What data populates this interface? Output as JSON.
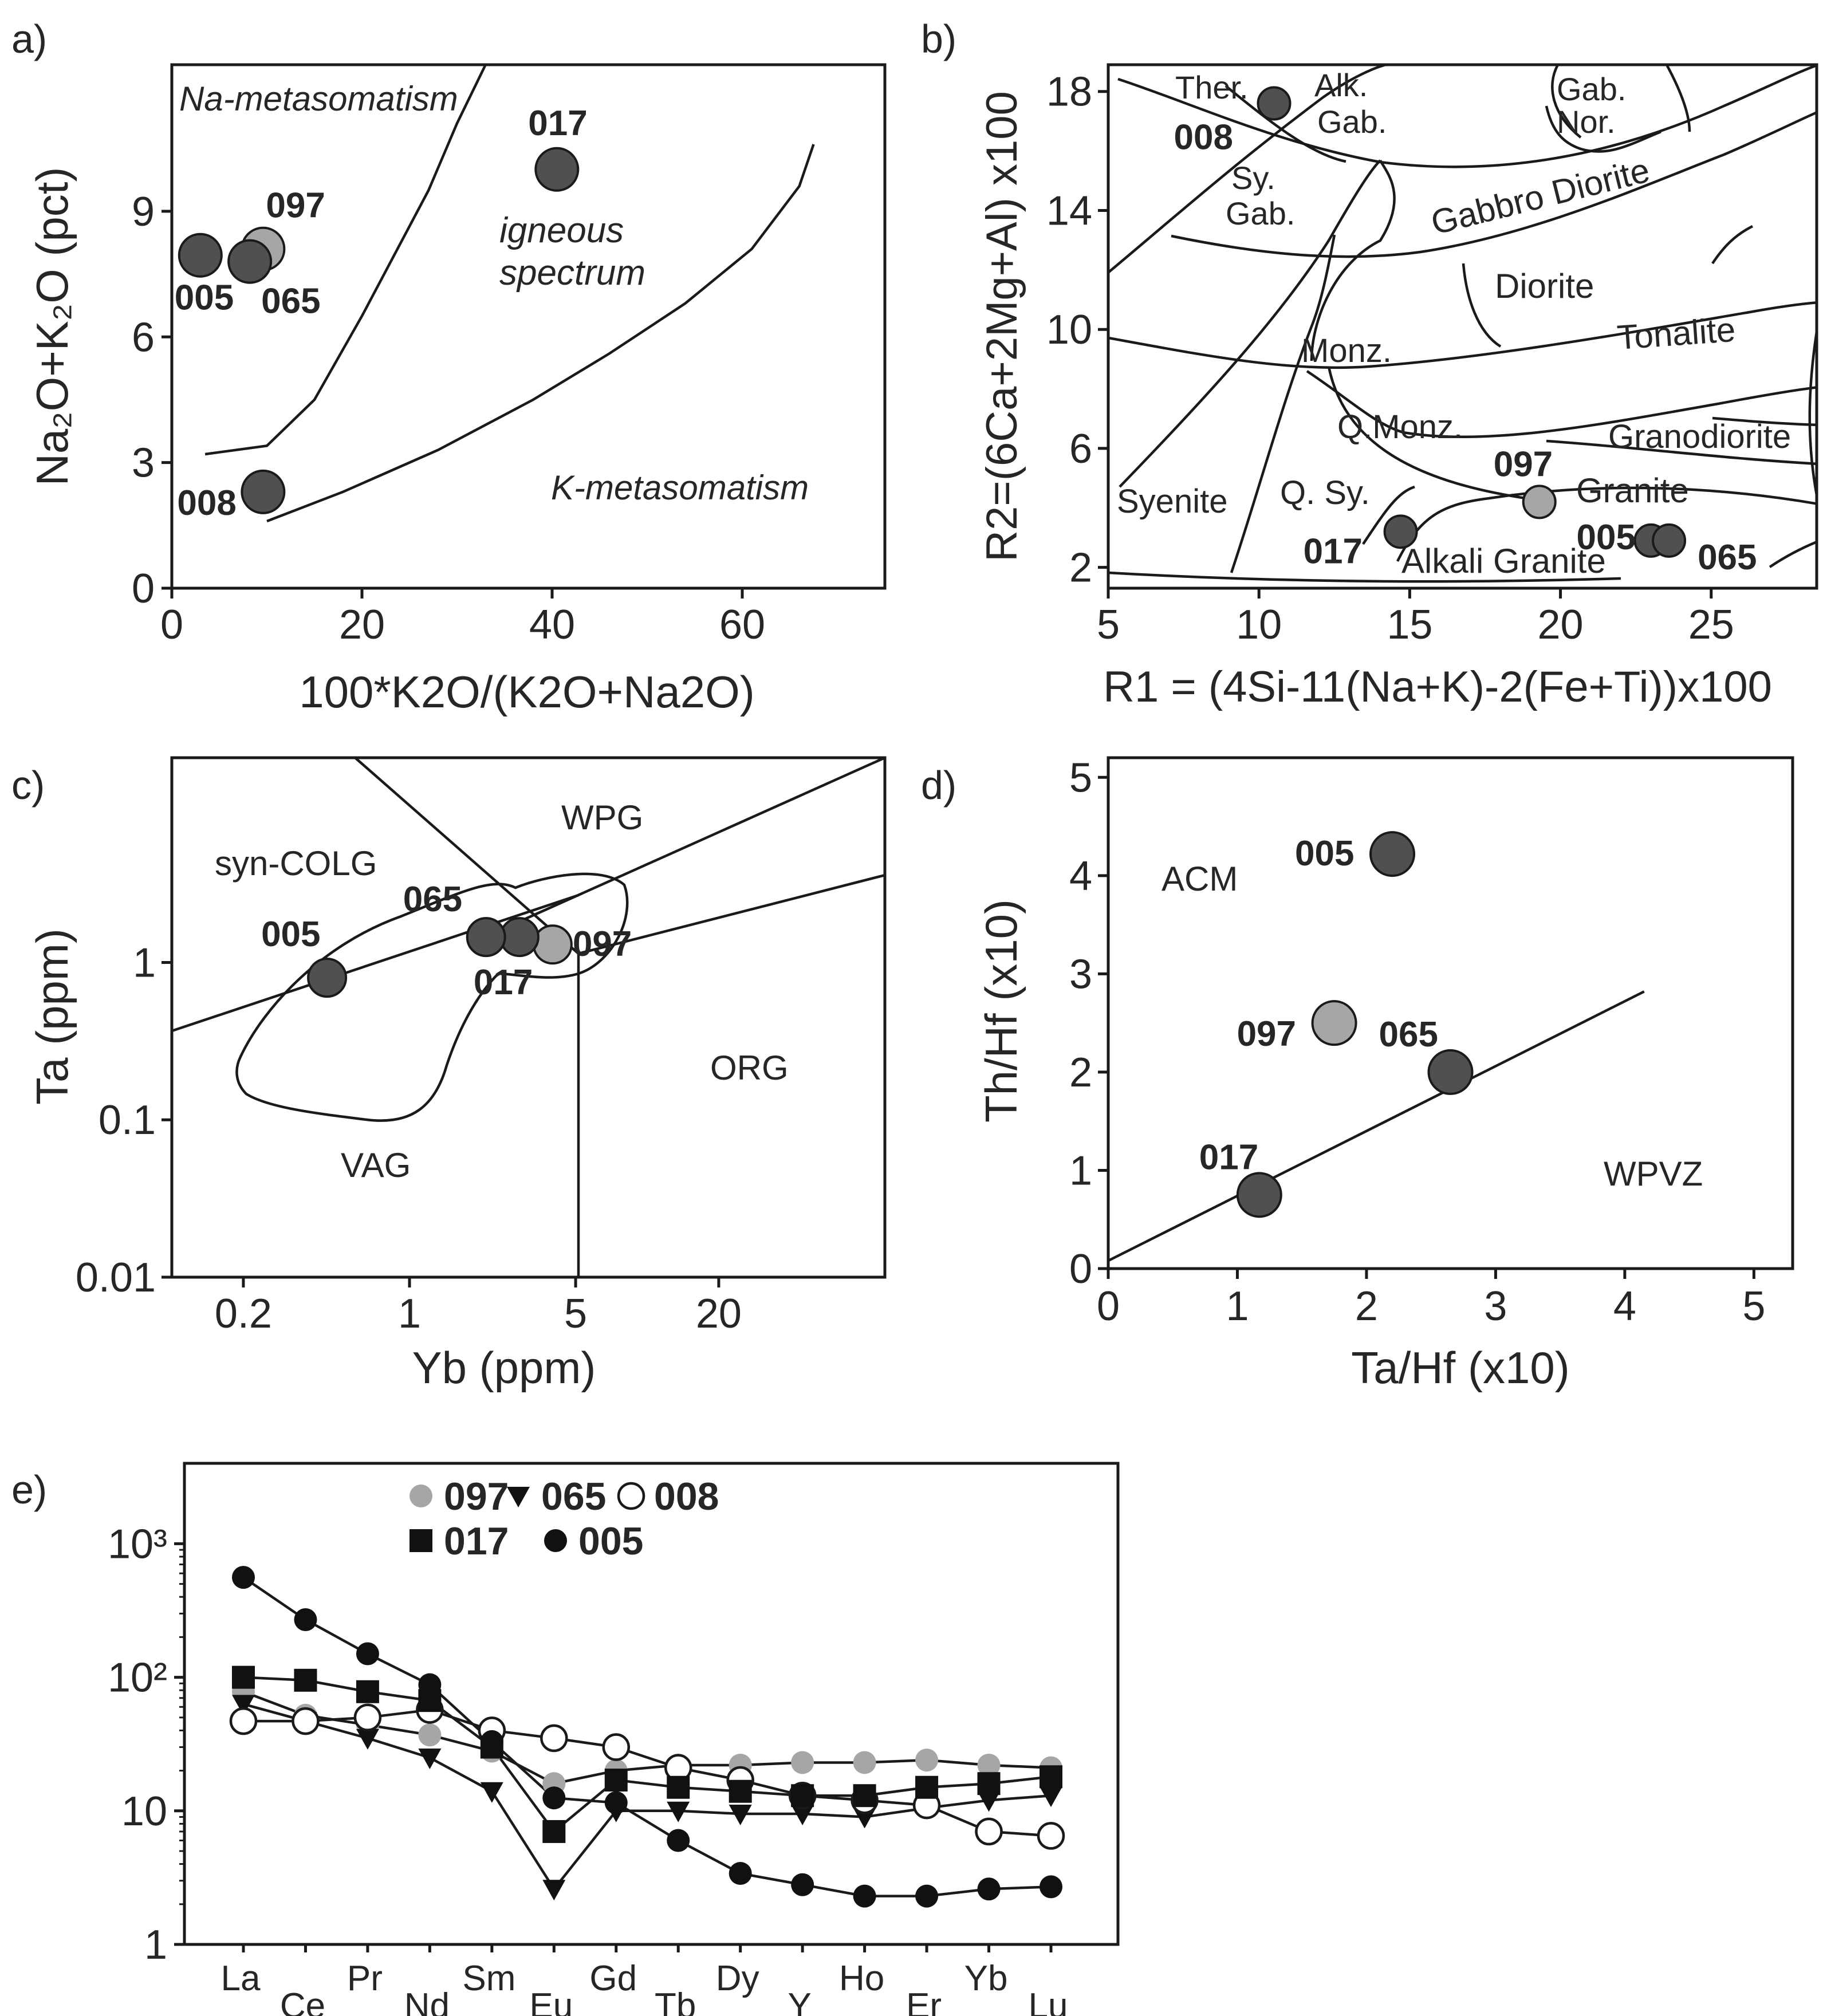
{
  "chart_data": [
    {
      "id": "a",
      "panel_label": "a)",
      "type": "scatter",
      "title": "",
      "xlabel": "100*K2O/(K2O+Na2O)",
      "ylabel": "Na₂O+K₂O (pct)",
      "xlim": [
        0,
        75
      ],
      "ylim": [
        0,
        12.5
      ],
      "xticks": [
        0,
        20,
        40,
        60
      ],
      "yticks": [
        0,
        3,
        6,
        9
      ],
      "region_labels": [
        "Na-metasomatism",
        "igneous spectrum",
        "K-metasomatism"
      ],
      "boundaries": [
        [
          [
            3.5,
            3.2
          ],
          [
            10,
            3.4
          ],
          [
            15,
            4.5
          ],
          [
            20,
            6.5
          ],
          [
            27,
            9.5
          ],
          [
            30,
            11.1
          ],
          [
            33,
            12.5
          ]
        ],
        [
          [
            10,
            1.6
          ],
          [
            18,
            2.3
          ],
          [
            28,
            3.3
          ],
          [
            38,
            4.5
          ],
          [
            46,
            5.6
          ],
          [
            54,
            6.8
          ],
          [
            61,
            8.1
          ],
          [
            66,
            9.6
          ],
          [
            67.5,
            10.6
          ]
        ]
      ],
      "points": [
        {
          "name": "017",
          "x": 40.5,
          "y": 10.0,
          "color": "#505050"
        },
        {
          "name": "097",
          "x": 9.6,
          "y": 8.1,
          "color": "#a6a6a6"
        },
        {
          "name": "005",
          "x": 3.0,
          "y": 7.95,
          "color": "#505050"
        },
        {
          "name": "065",
          "x": 8.2,
          "y": 7.8,
          "color": "#505050"
        },
        {
          "name": "008",
          "x": 9.6,
          "y": 2.3,
          "color": "#505050"
        }
      ]
    },
    {
      "id": "b",
      "panel_label": "b)",
      "type": "scatter",
      "title": "",
      "xlabel": "R1 = (4Si-11(Na+K)-2(Fe+Ti))x100",
      "ylabel": "R2=(6Ca+2Mg+Al) x100",
      "xlim": [
        5,
        28.5
      ],
      "ylim": [
        1.3,
        18.9
      ],
      "xticks": [
        5,
        10,
        15,
        20,
        25
      ],
      "yticks": [
        2,
        6,
        10,
        14,
        18
      ],
      "region_labels": [
        "Ther.",
        "Alk.",
        "Gab.",
        "Gab.",
        "Nor.",
        "Sy.",
        "Gab.",
        "Gabbro Diorite",
        "Diorite",
        "Tonalite",
        "Monz.",
        "Q.Monz.",
        "Granodiorite",
        "Syenite",
        "Q. Sy.",
        "Granite",
        "Alkali Granite"
      ],
      "points": [
        {
          "name": "008",
          "x": 10.5,
          "y": 17.6,
          "color": "#505050"
        },
        {
          "name": "097",
          "x": 19.3,
          "y": 4.2,
          "color": "#a6a6a6"
        },
        {
          "name": "017",
          "x": 14.7,
          "y": 3.2,
          "color": "#505050"
        },
        {
          "name": "005",
          "x": 23.0,
          "y": 2.9,
          "color": "#505050"
        },
        {
          "name": "065",
          "x": 23.6,
          "y": 2.9,
          "color": "#505050"
        }
      ]
    },
    {
      "id": "c",
      "panel_label": "c)",
      "type": "scatter",
      "title": "",
      "xlabel": "Yb (ppm)",
      "ylabel": "Ta (ppm)",
      "xscale": "log",
      "yscale": "log",
      "xlim": [
        0.1,
        100
      ],
      "ylim": [
        0.01,
        20
      ],
      "xticks": [
        0.2,
        1,
        5,
        20
      ],
      "yticks": [
        0.01,
        0.1,
        1
      ],
      "region_labels": [
        "syn-COLG",
        "WPG",
        "ORG",
        "VAG"
      ],
      "points": [
        {
          "name": "005",
          "x": 0.45,
          "y": 0.8,
          "color": "#505050"
        },
        {
          "name": "065",
          "x": 2.1,
          "y": 1.45,
          "color": "#505050"
        },
        {
          "name": "017",
          "x": 2.9,
          "y": 1.45,
          "color": "#505050"
        },
        {
          "name": "097",
          "x": 4.0,
          "y": 1.3,
          "color": "#a6a6a6"
        }
      ]
    },
    {
      "id": "d",
      "panel_label": "d)",
      "type": "scatter",
      "title": "",
      "xlabel": "Ta/Hf (x10)",
      "ylabel": "Th/Hf (x10)",
      "xlim": [
        0,
        5.3
      ],
      "ylim": [
        0,
        5.2
      ],
      "xticks": [
        0,
        1,
        2,
        3,
        4,
        5
      ],
      "yticks": [
        0,
        1,
        2,
        3,
        4,
        5
      ],
      "region_labels": [
        "ACM",
        "WPVZ"
      ],
      "points": [
        {
          "name": "005",
          "x": 2.2,
          "y": 4.22,
          "color": "#505050"
        },
        {
          "name": "097",
          "x": 1.75,
          "y": 2.5,
          "color": "#a6a6a6"
        },
        {
          "name": "065",
          "x": 2.65,
          "y": 2.0,
          "color": "#505050"
        },
        {
          "name": "017",
          "x": 1.17,
          "y": 0.75,
          "color": "#505050"
        }
      ]
    },
    {
      "id": "e",
      "panel_label": "e)",
      "type": "line",
      "title": "",
      "xlabel": "",
      "ylabel": "",
      "yscale": "log",
      "ylim": [
        1,
        4000
      ],
      "yticks": [
        "1",
        "10",
        "10²",
        "10³"
      ],
      "categories": [
        "La",
        "Ce",
        "Pr",
        "Nd",
        "Sm",
        "Eu",
        "Gd",
        "Tb",
        "Dy",
        "Y",
        "Ho",
        "Er",
        "Yb",
        "Lu"
      ],
      "series": [
        {
          "name": "097",
          "marker": "circle-gray",
          "values": [
            78,
            52,
            44,
            37,
            28,
            16,
            20,
            22,
            22,
            23,
            23,
            24,
            22,
            21
          ]
        },
        {
          "name": "065",
          "marker": "triangle-down",
          "values": [
            63,
            47,
            35,
            25,
            14,
            2.6,
            10,
            10,
            9.5,
            9.5,
            9,
            10.5,
            12,
            13
          ]
        },
        {
          "name": "008",
          "marker": "circle-open",
          "values": [
            47,
            47,
            50,
            57,
            40,
            35,
            30,
            21,
            17,
            13,
            12,
            11,
            7,
            6.5
          ]
        },
        {
          "name": "017",
          "marker": "square",
          "values": [
            100,
            95,
            78,
            67,
            30,
            7,
            17,
            15,
            14,
            13,
            13,
            15,
            16,
            18
          ]
        },
        {
          "name": "005",
          "marker": "circle-black",
          "values": [
            560,
            270,
            150,
            88,
            33,
            12.5,
            11.5,
            6,
            3.4,
            2.8,
            2.3,
            2.3,
            2.6,
            2.7
          ]
        }
      ]
    }
  ]
}
